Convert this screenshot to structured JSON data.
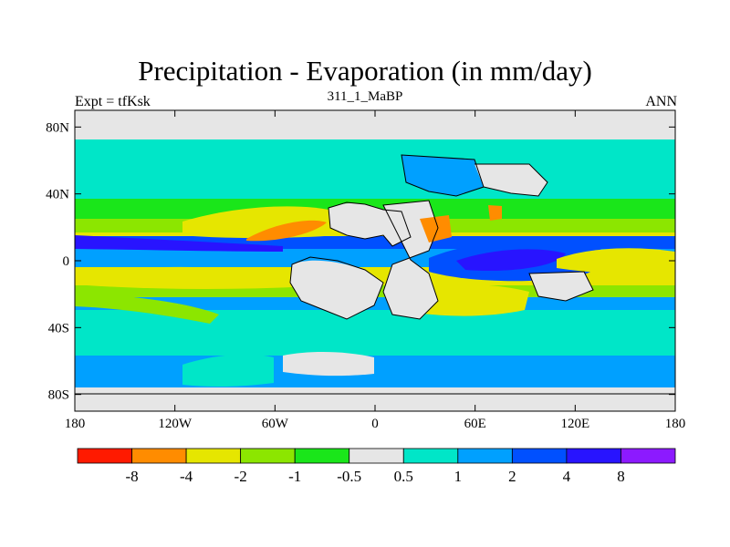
{
  "chart_data": {
    "type": "heatmap",
    "title": "Precipitation - Evaporation (in mm/day)",
    "subtitle": "311_1_MaBP",
    "left_label": "Expt = tfKsk",
    "right_label": "ANN",
    "x_ticks": [
      "180",
      "120W",
      "60W",
      "0",
      "60E",
      "120E",
      "180"
    ],
    "x_tick_values": [
      -180,
      -120,
      -60,
      0,
      60,
      120,
      180
    ],
    "y_ticks": [
      "80N",
      "40N",
      "0",
      "40S",
      "80S"
    ],
    "y_tick_values": [
      80,
      40,
      0,
      -40,
      -80
    ],
    "xlim": [
      -180,
      180
    ],
    "ylim": [
      -90,
      90
    ],
    "colorbar": {
      "levels": [
        "-8",
        "-4",
        "-2",
        "-1",
        "-0.5",
        "0.5",
        "1",
        "2",
        "4",
        "8"
      ],
      "colors": [
        "#ff1a00",
        "#ff8c00",
        "#e6e600",
        "#8ce600",
        "#1ae61a",
        "#e6e6e6",
        "#00e6c8",
        "#00a0ff",
        "#0050ff",
        "#2814ff",
        "#8c1aff"
      ]
    },
    "zonal_bands": [
      {
        "lat_range": [
          72,
          90
        ],
        "class": "-0.5 to 0.5"
      },
      {
        "lat_range": [
          50,
          72
        ],
        "class": "0.5 to 1"
      },
      {
        "lat_range": [
          28,
          40
        ],
        "class": "-1 to -0.5"
      },
      {
        "lat_range": [
          20,
          28
        ],
        "class": "-2 to -1"
      },
      {
        "lat_range": [
          10,
          20
        ],
        "class": "-4 to -2"
      },
      {
        "lat_range": [
          3,
          10
        ],
        "class": "4 to 8"
      },
      {
        "lat_range": [
          -3,
          3
        ],
        "class": "1 to 2"
      },
      {
        "lat_range": [
          -15,
          -3
        ],
        "class": "-4 to -2"
      },
      {
        "lat_range": [
          -22,
          -15
        ],
        "class": "-2 to -1"
      },
      {
        "lat_range": [
          -30,
          -22
        ],
        "class": "1 to 2"
      },
      {
        "lat_range": [
          -58,
          -30
        ],
        "class": "0.5 to 1"
      },
      {
        "lat_range": [
          -75,
          -58
        ],
        "class": "1 to 2"
      },
      {
        "lat_range": [
          -90,
          -75
        ],
        "class": "-0.5 to 0.5"
      }
    ]
  }
}
